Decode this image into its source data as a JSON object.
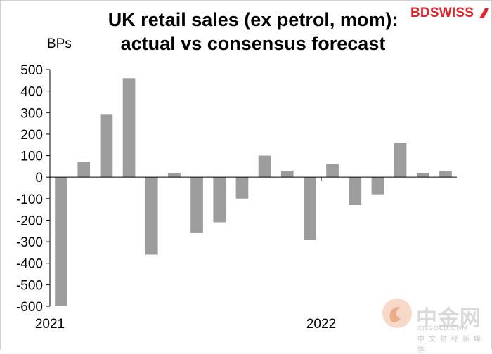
{
  "brand": {
    "logo_text": "BDSWISS",
    "accent": "#e3232a"
  },
  "watermark": {
    "name": "中金网",
    "url": "CNGOLD.COM",
    "sub": "中文财经新媒体"
  },
  "chart_data": {
    "type": "bar",
    "title": "UK retail sales (ex petrol, mom): actual vs consensus forecast",
    "title_lines": [
      "UK retail sales (ex petrol, mom):",
      "actual vs consensus forecast"
    ],
    "ylabel": "BPs",
    "ylim": [
      -600,
      500
    ],
    "yticks": [
      500,
      400,
      300,
      200,
      100,
      0,
      -100,
      -200,
      -300,
      -400,
      -500,
      -600
    ],
    "x_labels": [
      {
        "text": "2021",
        "index": 0
      },
      {
        "text": "2022",
        "index": 12
      }
    ],
    "values": [
      -600,
      70,
      290,
      460,
      -360,
      20,
      -260,
      -210,
      -100,
      100,
      30,
      -290,
      60,
      -130,
      -80,
      160,
      20,
      30
    ],
    "bar_color": "#9d9d9d",
    "grid": false
  }
}
